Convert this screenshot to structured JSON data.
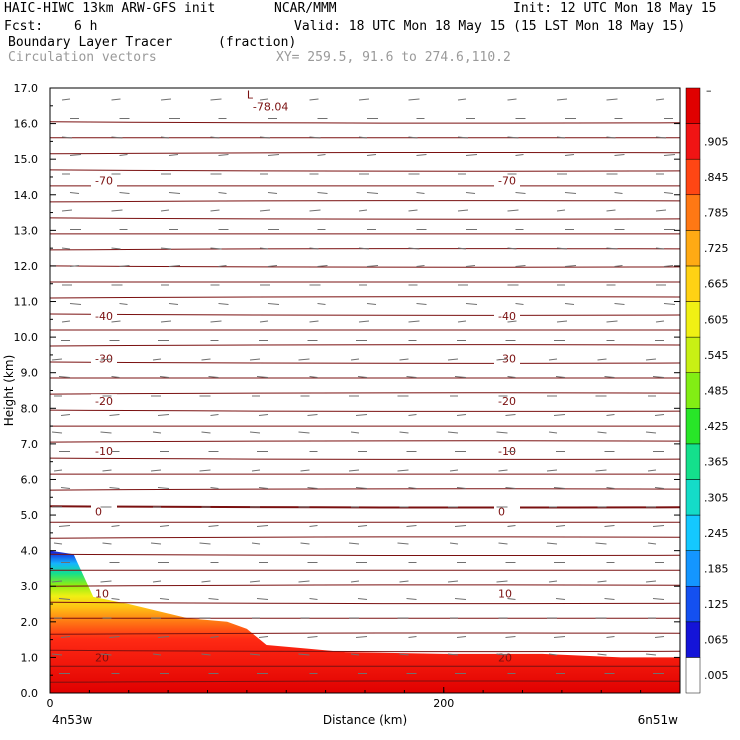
{
  "header": {
    "model": "HAIC-HIWC 13km ARW-GFS init",
    "org": "NCAR/MMM",
    "init": "Init: 12 UTC Mon 18 May 15",
    "fcst_label": "Fcst:",
    "fcst_value": "6 h",
    "valid": "Valid: 18 UTC Mon 18 May 15 (15 LST Mon 18 May 15)",
    "field": "Boundary Layer Tracer",
    "units": "(fraction)",
    "overlay": "Circulation vectors",
    "xy": "XY= 259.5, 91.6 to 274.6,110.2"
  },
  "chart_data": {
    "type": "heatmap",
    "title": "Boundary Layer Tracer",
    "xlabel": "Distance (km)",
    "ylabel": "Height (km)",
    "xlim": [
      0,
      320
    ],
    "ylim": [
      0,
      17
    ],
    "x_ticks": [
      "0",
      "200"
    ],
    "y_ticks": [
      "0.0",
      "1.0",
      "2.0",
      "3.0",
      "4.0",
      "5.0",
      "6.0",
      "7.0",
      "8.0",
      "9.0",
      "10.0",
      "11.0",
      "12.0",
      "13.0",
      "14.0",
      "15.0",
      "16.0",
      "17.0"
    ],
    "x_endpoints": {
      "left": "4n53w",
      "right": "6n51w"
    },
    "tracer_top_km": [
      {
        "x": 0,
        "y": 4.0
      },
      {
        "x": 12,
        "y": 3.9
      },
      {
        "x": 22,
        "y": 2.7
      },
      {
        "x": 40,
        "y": 2.5
      },
      {
        "x": 55,
        "y": 2.3
      },
      {
        "x": 70,
        "y": 2.1
      },
      {
        "x": 90,
        "y": 2.0
      },
      {
        "x": 100,
        "y": 1.8
      },
      {
        "x": 110,
        "y": 1.35
      },
      {
        "x": 130,
        "y": 1.25
      },
      {
        "x": 150,
        "y": 1.15
      },
      {
        "x": 200,
        "y": 1.1
      },
      {
        "x": 250,
        "y": 1.1
      },
      {
        "x": 290,
        "y": 1.0
      },
      {
        "x": 320,
        "y": 1.0
      }
    ],
    "colorbar": {
      "labels": [
        ".005",
        ".065",
        ".125",
        ".185",
        ".245",
        ".305",
        ".365",
        ".425",
        ".485",
        ".545",
        ".605",
        ".665",
        ".725",
        ".785",
        ".845",
        ".905"
      ],
      "colors": [
        "#ffffff",
        "#1414d8",
        "#1450f0",
        "#1496ff",
        "#14c8ff",
        "#14dcc8",
        "#14e08c",
        "#28e628",
        "#82ee14",
        "#c8f014",
        "#f0f014",
        "#ffd214",
        "#ffaa14",
        "#ff7814",
        "#ff4614",
        "#f01414",
        "#e00000"
      ],
      "top_label": "–"
    },
    "temperature_contours_C": [
      {
        "label": "-70",
        "y": 14.4
      },
      {
        "label": "-40",
        "y": 10.6
      },
      {
        "label": "-30",
        "y": 9.4
      },
      {
        "label": "-20",
        "y": 8.2
      },
      {
        "label": "-10",
        "y": 6.8
      },
      {
        "label": "0",
        "y": 5.1
      },
      {
        "label": "10",
        "y": 2.8
      },
      {
        "label": "20",
        "y": 1.0
      }
    ],
    "min_label": {
      "text": "L",
      "value": "-78.04",
      "x": 100,
      "y": 16.7
    }
  }
}
